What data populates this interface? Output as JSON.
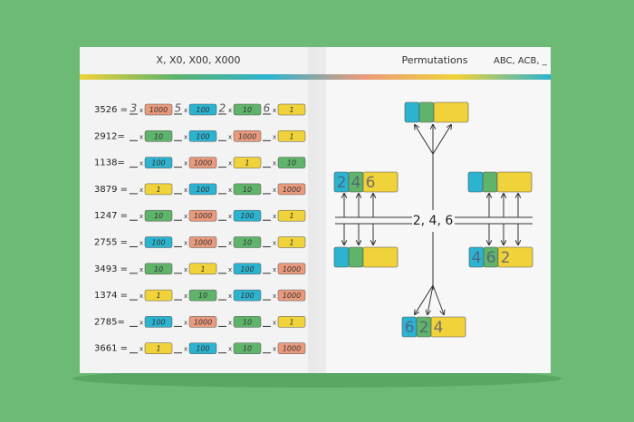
{
  "left": {
    "title": "X, X0, X00, X000",
    "times": "x",
    "rows": [
      {
        "number": "3526 =",
        "digits": [
          "3",
          "5",
          "2",
          "6"
        ],
        "terms": [
          "1000",
          "100",
          "10",
          "1"
        ]
      },
      {
        "number": "2912=",
        "terms": [
          "10",
          "100",
          "1000",
          "1"
        ]
      },
      {
        "number": "1138=",
        "terms": [
          "100",
          "1000",
          "1",
          "10"
        ]
      },
      {
        "number": "3879 =",
        "terms": [
          "1",
          "100",
          "10",
          "1000"
        ]
      },
      {
        "number": "1247 =",
        "terms": [
          "10",
          "1000",
          "100",
          "1"
        ]
      },
      {
        "number": "2755 =",
        "terms": [
          "100",
          "1000",
          "10",
          "1"
        ]
      },
      {
        "number": "3493 =",
        "terms": [
          "10",
          "1",
          "100",
          "1000"
        ]
      },
      {
        "number": "1374 =",
        "terms": [
          "1",
          "10",
          "100",
          "1000"
        ]
      },
      {
        "number": "2785=",
        "terms": [
          "100",
          "1000",
          "10",
          "1"
        ]
      },
      {
        "number": "3661 =",
        "terms": [
          "1",
          "100",
          "10",
          "1000"
        ]
      }
    ]
  },
  "right": {
    "title": "Permutations",
    "subtitle": "ABC, ACB, _",
    "center": "2, 4, 6",
    "tiles": [
      {
        "digits": [
          "2",
          "4",
          "6"
        ]
      },
      {
        "digits": [
          "4",
          "6",
          "2"
        ]
      },
      {
        "digits": [
          "6",
          "2",
          "4"
        ]
      }
    ]
  }
}
